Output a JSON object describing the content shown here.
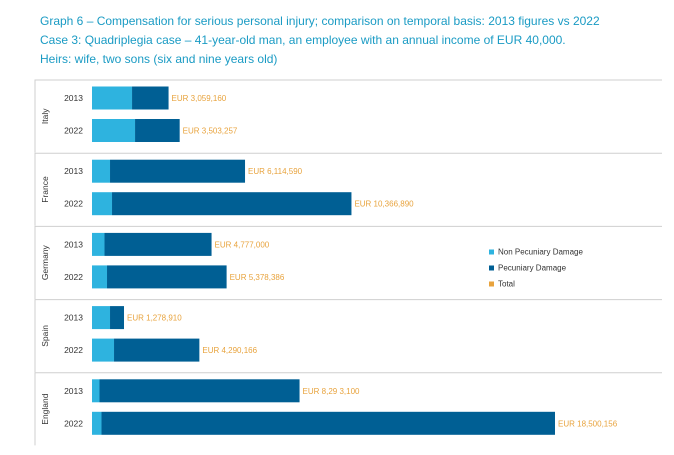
{
  "titles": {
    "line1": "Graph 6 – Compensation for serious personal injury; comparison on temporal basis: 2013 figures vs 2022",
    "line2": "Case 3: Quadriplegia case – 41-year-old man, an employee with an annual income of EUR 40,000.",
    "line3": "Heirs: wife, two sons (six and nine years old)"
  },
  "colors": {
    "non_pecuniary": "#2eb3df",
    "pecuniary": "#005f94",
    "total": "#e8a33d",
    "group_border": "#cfcfcf",
    "title": "#1a9bc4"
  },
  "chart_data": {
    "type": "bar",
    "orientation": "horizontal",
    "stacked": true,
    "xlim": [
      0,
      18500156
    ],
    "grid": false,
    "legend_position": "right",
    "series_names": [
      "Non Pecuniary Damage",
      "Pecuniary Damage",
      "Total"
    ],
    "groups": [
      {
        "country": "Italy",
        "rows": [
          {
            "year": "2013",
            "non_pecuniary": 1600000,
            "pecuniary": 1459160,
            "total": 3059160,
            "total_label": "EUR 3,059,160"
          },
          {
            "year": "2022",
            "non_pecuniary": 1720000,
            "pecuniary": 1783257,
            "total": 3503257,
            "total_label": "EUR 3,503,257"
          }
        ]
      },
      {
        "country": "France",
        "rows": [
          {
            "year": "2013",
            "non_pecuniary": 720000,
            "pecuniary": 5394590,
            "total": 6114590,
            "total_label": "EUR 6,114,590"
          },
          {
            "year": "2022",
            "non_pecuniary": 800000,
            "pecuniary": 9566890,
            "total": 10366890,
            "total_label": "EUR 10,366,890"
          }
        ]
      },
      {
        "country": "Germany",
        "rows": [
          {
            "year": "2013",
            "non_pecuniary": 500000,
            "pecuniary": 4277000,
            "total": 4777000,
            "total_label": "EUR 4,777,000"
          },
          {
            "year": "2022",
            "non_pecuniary": 600000,
            "pecuniary": 4778386,
            "total": 5378386,
            "total_label": "EUR 5,378,386"
          }
        ]
      },
      {
        "country": "Spain",
        "rows": [
          {
            "year": "2013",
            "non_pecuniary": 720000,
            "pecuniary": 558910,
            "total": 1278910,
            "total_label": "EUR 1,278,910"
          },
          {
            "year": "2022",
            "non_pecuniary": 880000,
            "pecuniary": 3410166,
            "total": 4290166,
            "total_label": "EUR 4,290,166"
          }
        ]
      },
      {
        "country": "England",
        "rows": [
          {
            "year": "2013",
            "non_pecuniary": 300000,
            "pecuniary": 7993100,
            "total": 8293100,
            "total_label": "EUR 8,29 3,100"
          },
          {
            "year": "2022",
            "non_pecuniary": 380000,
            "pecuniary": 18120156,
            "total": 18500156,
            "total_label": "EUR 18,500,156"
          }
        ]
      }
    ]
  }
}
